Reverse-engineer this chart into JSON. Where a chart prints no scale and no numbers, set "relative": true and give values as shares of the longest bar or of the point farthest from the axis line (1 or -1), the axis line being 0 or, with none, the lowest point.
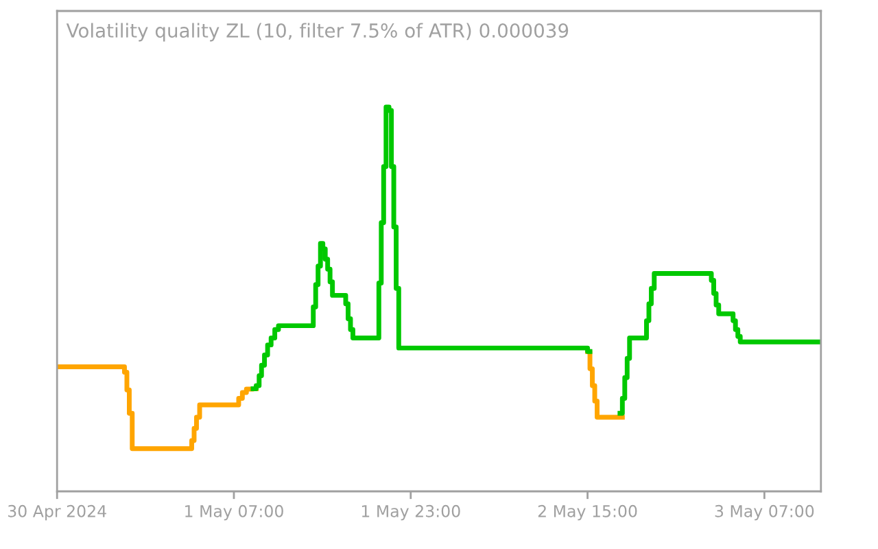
{
  "chart_data": {
    "type": "step",
    "title": "Volatility quality ZL (10, filter 7.5% of ATR) 0.000039",
    "relative": true,
    "tick_labels": "x",
    "grid": false,
    "legend": false,
    "x": [
      "2024-04-30T15:00",
      "2024-04-30T21:06",
      "2024-04-30T21:19",
      "2024-04-30T21:32",
      "2024-04-30T21:48",
      "2024-05-01T03:11",
      "2024-05-01T03:24",
      "2024-05-01T03:37",
      "2024-05-01T03:54",
      "2024-05-01T07:26",
      "2024-05-01T07:46",
      "2024-05-01T08:08",
      "2024-05-01T08:44",
      "2024-05-01T09:01",
      "2024-05-01T09:17",
      "2024-05-01T09:30",
      "2024-05-01T09:46",
      "2024-05-01T10:03",
      "2024-05-01T10:22",
      "2024-05-01T10:42",
      "2024-05-01T11:02",
      "2024-05-01T14:11",
      "2024-05-01T14:24",
      "2024-05-01T14:37",
      "2024-05-01T14:50",
      "2024-05-01T15:03",
      "2024-05-01T15:16",
      "2024-05-01T15:29",
      "2024-05-01T15:42",
      "2024-05-01T15:55",
      "2024-05-01T17:07",
      "2024-05-01T17:20",
      "2024-05-01T17:33",
      "2024-05-01T17:46",
      "2024-05-01T20:07",
      "2024-05-01T20:20",
      "2024-05-01T20:33",
      "2024-05-01T20:46",
      "2024-05-01T21:02",
      "2024-05-01T21:15",
      "2024-05-01T21:28",
      "2024-05-01T21:41",
      "2024-05-01T21:55",
      "2024-05-02T15:00",
      "2024-05-02T15:13",
      "2024-05-02T15:26",
      "2024-05-02T15:39",
      "2024-05-02T15:52",
      "2024-05-02T17:56",
      "2024-05-02T18:09",
      "2024-05-02T18:22",
      "2024-05-02T18:35",
      "2024-05-02T18:48",
      "2024-05-02T20:20",
      "2024-05-02T20:33",
      "2024-05-02T20:46",
      "2024-05-02T21:02",
      "2024-05-03T02:12",
      "2024-05-03T02:25",
      "2024-05-03T02:38",
      "2024-05-03T02:52",
      "2024-05-03T04:10",
      "2024-05-03T04:23",
      "2024-05-03T04:36",
      "2024-05-03T04:49",
      "2024-05-03T12:07"
    ],
    "series": [
      {
        "color": "#ffa500",
        "values": [
          0.324,
          0.31,
          0.264,
          0.203,
          0.111,
          0.132,
          0.164,
          0.193,
          0.225,
          0.242,
          0.257,
          0.266,
          0.267,
          null,
          null,
          null,
          null,
          null,
          null,
          null,
          null,
          null,
          null,
          null,
          null,
          null,
          null,
          null,
          null,
          null,
          null,
          null,
          null,
          null,
          null,
          null,
          null,
          null,
          null,
          null,
          null,
          null,
          null,
          0.364,
          0.319,
          0.275,
          0.235,
          0.193,
          0.193,
          null,
          null,
          null,
          null,
          null,
          null,
          null,
          null,
          null,
          null,
          null,
          null,
          null,
          null,
          null,
          null,
          null
        ]
      },
      {
        "color": "#00c800",
        "values": [
          null,
          null,
          null,
          null,
          null,
          null,
          null,
          null,
          null,
          null,
          null,
          null,
          0.267,
          0.275,
          0.301,
          0.328,
          0.355,
          0.381,
          0.399,
          0.421,
          0.431,
          0.48,
          0.538,
          0.586,
          0.645,
          0.631,
          0.604,
          0.578,
          0.545,
          0.51,
          0.488,
          0.449,
          0.421,
          0.399,
          0.542,
          0.699,
          0.845,
          1,
          0.991,
          0.845,
          0.688,
          0.528,
          0.373,
          0.364,
          null,
          null,
          null,
          null,
          0.203,
          0.242,
          0.296,
          0.346,
          0.399,
          0.444,
          0.488,
          0.528,
          0.567,
          0.549,
          0.515,
          0.485,
          0.462,
          0.444,
          0.421,
          0.403,
          0.389,
          0.389
        ]
      }
    ],
    "xlim": [
      "2024-04-30T15:00",
      "2024-05-03T12:07"
    ],
    "xticks": [
      {
        "value": "2024-04-30T15:00",
        "label": "30 Apr 2024"
      },
      {
        "value": "2024-05-01T07:00",
        "label": "1 May 07:00"
      },
      {
        "value": "2024-05-01T23:00",
        "label": "1 May 23:00"
      },
      {
        "value": "2024-05-02T15:00",
        "label": "2 May 15:00"
      },
      {
        "value": "2024-05-03T07:00",
        "label": "3 May 07:00"
      }
    ]
  }
}
